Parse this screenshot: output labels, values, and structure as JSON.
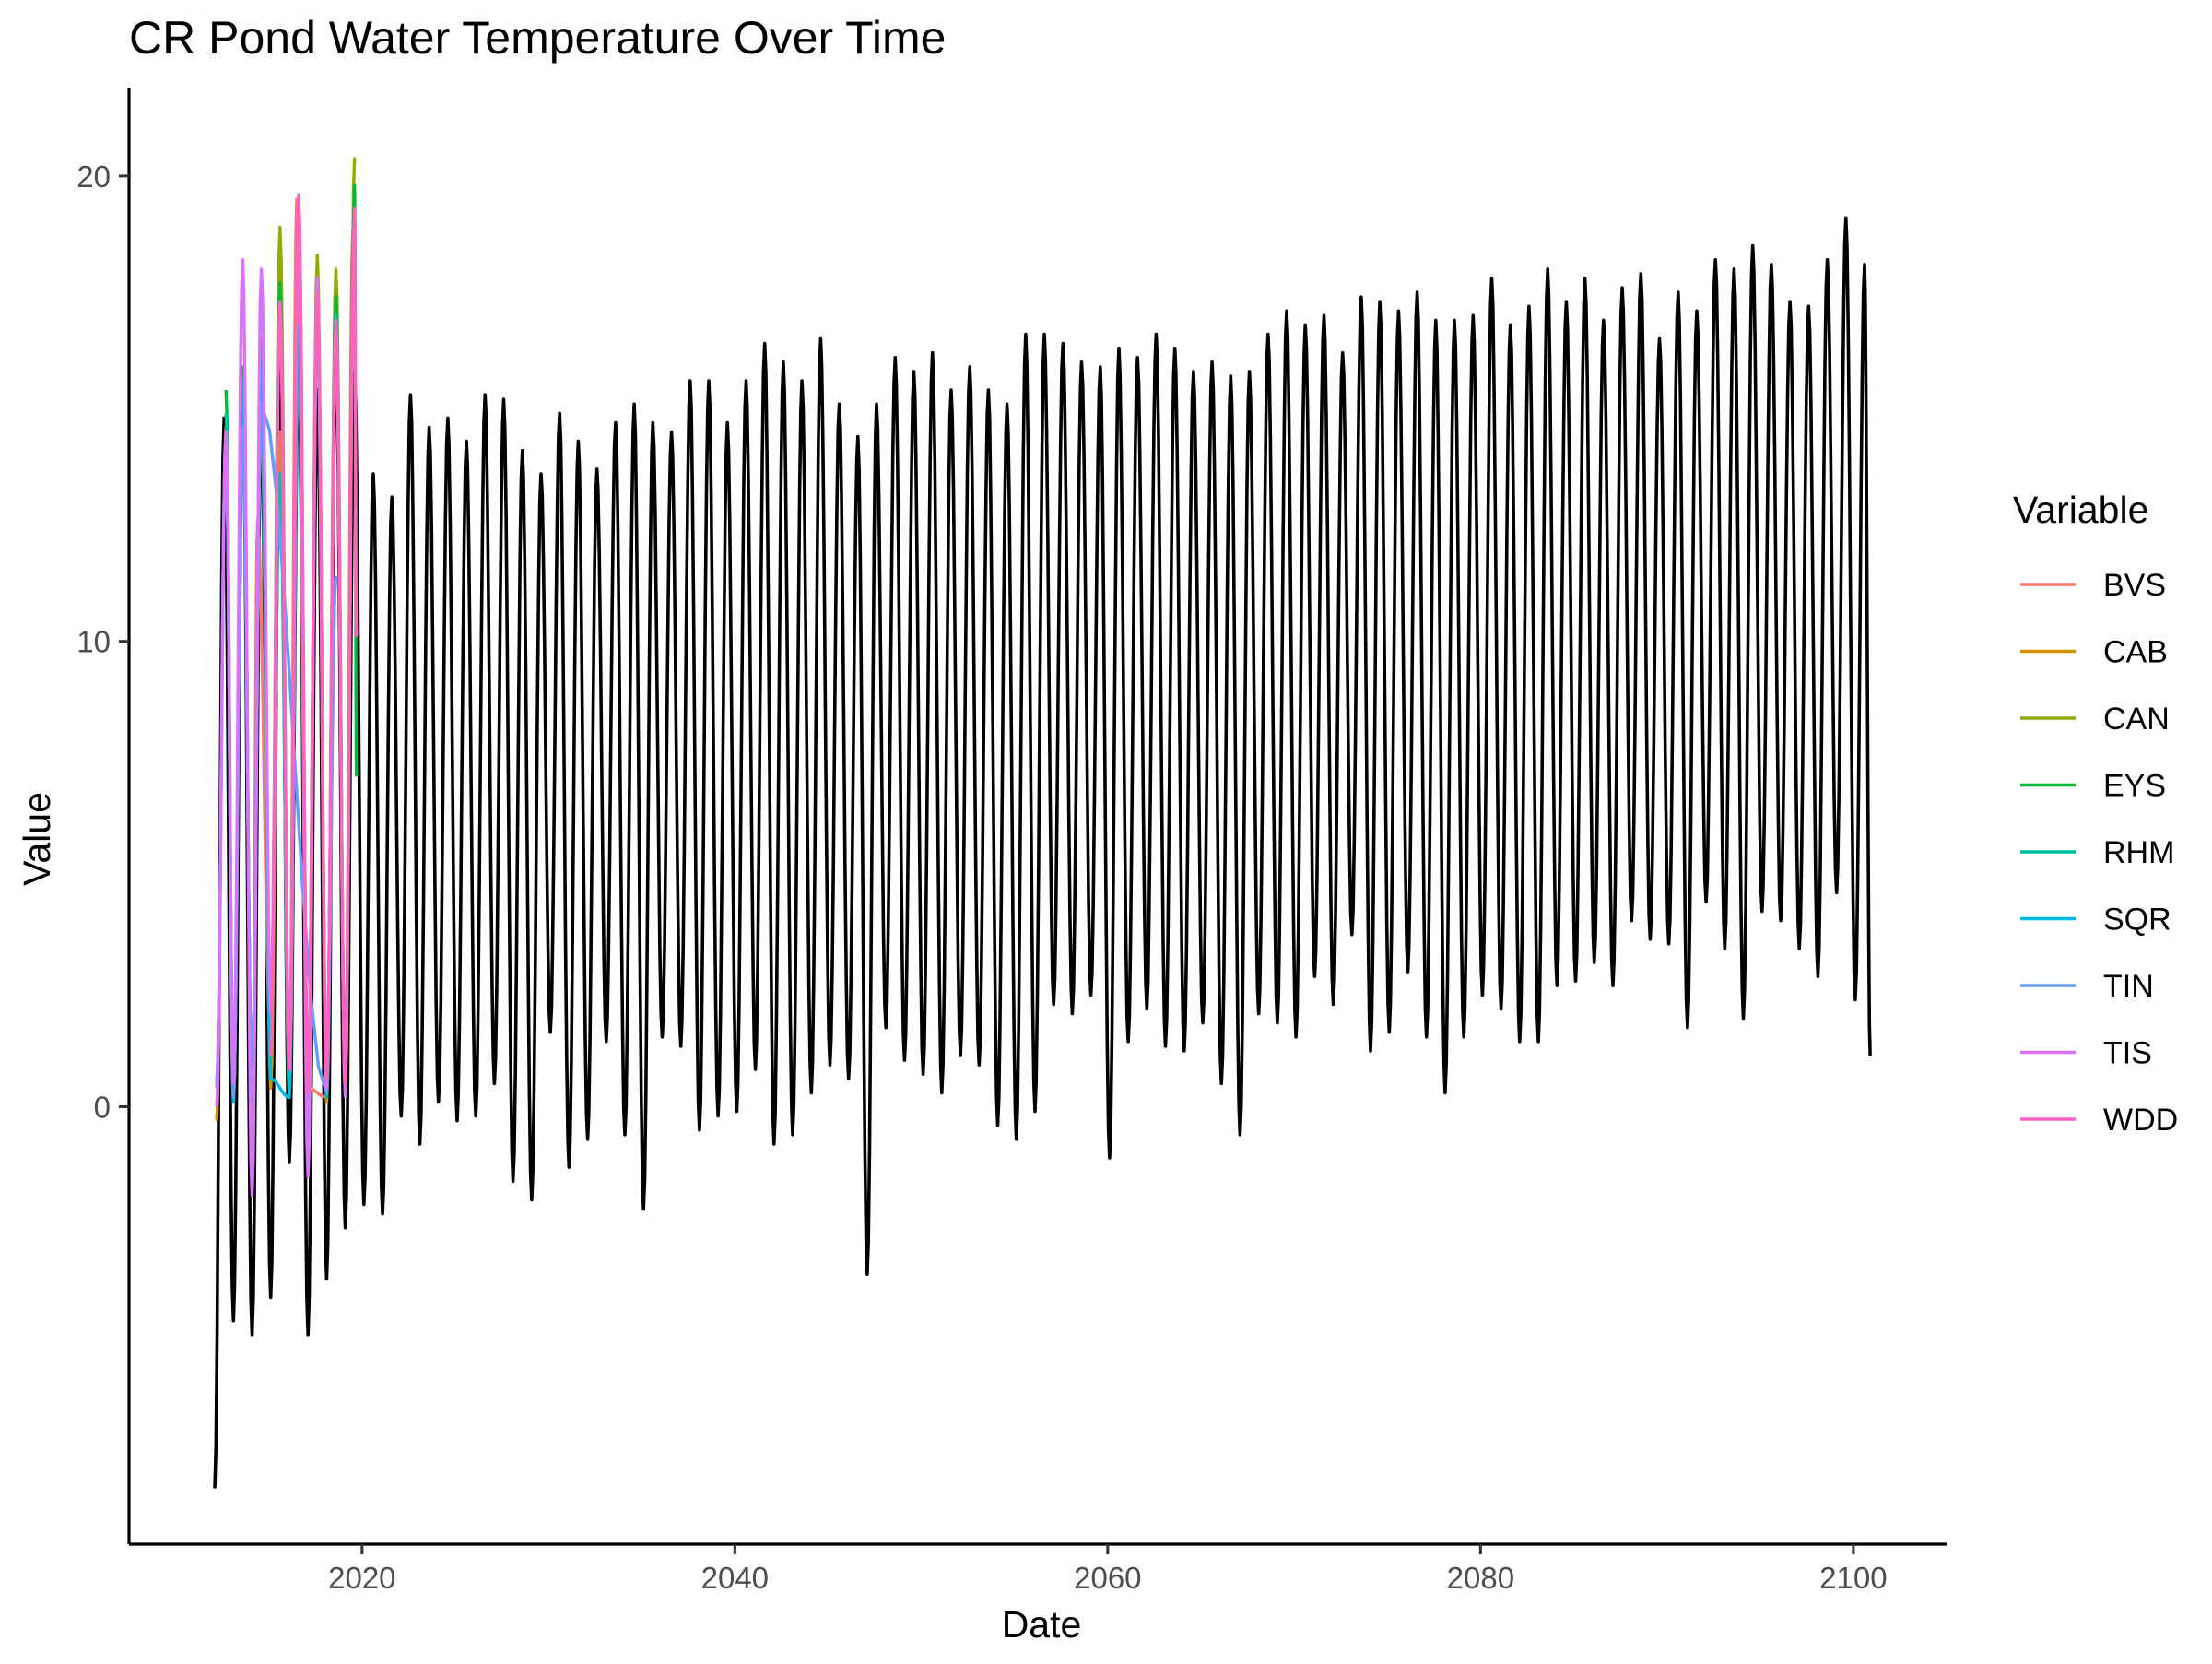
{
  "chart_data": {
    "type": "line",
    "title": "CR Pond Water Temperature Over Time",
    "xlabel": "Date",
    "ylabel": "Value",
    "xlim": [
      2007.5,
      2105.0
    ],
    "ylim": [
      -9.4,
      21.9
    ],
    "x_ticks": [
      2020,
      2040,
      2060,
      2080,
      2100
    ],
    "y_ticks": [
      0,
      10,
      20
    ],
    "grid": false,
    "legend": {
      "title": "Variable",
      "position": "right",
      "entries": [
        {
          "name": "BVS",
          "color": "#F8766D"
        },
        {
          "name": "CAB",
          "color": "#D39200"
        },
        {
          "name": "CAN",
          "color": "#93AA00"
        },
        {
          "name": "EYS",
          "color": "#00BA38"
        },
        {
          "name": "RHM",
          "color": "#00C19F"
        },
        {
          "name": "SQR",
          "color": "#00B9E3"
        },
        {
          "name": "TIN",
          "color": "#619CFF"
        },
        {
          "name": "TIS",
          "color": "#DB72FB"
        },
        {
          "name": "WDD",
          "color": "#FF61C3"
        }
      ]
    },
    "projection": {
      "name": "",
      "color": "#000000",
      "start_year": 2012.2,
      "end_year": 2100.9,
      "summer_peaks": [
        [
          2012.6,
          14.8
        ],
        [
          2013.6,
          15.2
        ],
        [
          2014.6,
          15.0
        ],
        [
          2015.6,
          16.2
        ],
        [
          2016.6,
          16.0
        ],
        [
          2017.6,
          15.4
        ],
        [
          2018.6,
          16.4
        ],
        [
          2019.6,
          15.8
        ],
        [
          2020.6,
          13.6
        ],
        [
          2021.6,
          13.1
        ],
        [
          2022.6,
          15.3
        ],
        [
          2023.6,
          14.6
        ],
        [
          2024.6,
          14.8
        ],
        [
          2025.6,
          14.3
        ],
        [
          2026.6,
          15.3
        ],
        [
          2027.6,
          15.2
        ],
        [
          2028.6,
          14.1
        ],
        [
          2029.6,
          13.6
        ],
        [
          2030.6,
          14.9
        ],
        [
          2031.6,
          14.3
        ],
        [
          2032.6,
          13.7
        ],
        [
          2033.6,
          14.7
        ],
        [
          2034.6,
          15.1
        ],
        [
          2035.6,
          14.7
        ],
        [
          2036.6,
          14.5
        ],
        [
          2037.6,
          15.6
        ],
        [
          2038.6,
          15.6
        ],
        [
          2039.6,
          14.7
        ],
        [
          2040.6,
          15.6
        ],
        [
          2041.6,
          16.4
        ],
        [
          2042.6,
          16.0
        ],
        [
          2043.6,
          15.6
        ],
        [
          2044.6,
          16.5
        ],
        [
          2045.6,
          15.1
        ],
        [
          2046.6,
          14.4
        ],
        [
          2047.6,
          15.1
        ],
        [
          2048.6,
          16.1
        ],
        [
          2049.6,
          15.8
        ],
        [
          2050.6,
          16.2
        ],
        [
          2051.6,
          15.4
        ],
        [
          2052.6,
          15.9
        ],
        [
          2053.6,
          15.4
        ],
        [
          2054.6,
          15.1
        ],
        [
          2055.6,
          16.6
        ],
        [
          2056.6,
          16.6
        ],
        [
          2057.6,
          16.4
        ],
        [
          2058.6,
          16.0
        ],
        [
          2059.6,
          15.9
        ],
        [
          2060.6,
          16.3
        ],
        [
          2061.6,
          16.1
        ],
        [
          2062.6,
          16.6
        ],
        [
          2063.6,
          16.3
        ],
        [
          2064.6,
          15.8
        ],
        [
          2065.6,
          16.0
        ],
        [
          2066.6,
          15.7
        ],
        [
          2067.6,
          15.8
        ],
        [
          2068.6,
          16.6
        ],
        [
          2069.6,
          17.1
        ],
        [
          2070.6,
          16.8
        ],
        [
          2071.6,
          17.0
        ],
        [
          2072.6,
          16.2
        ],
        [
          2073.6,
          17.4
        ],
        [
          2074.6,
          17.3
        ],
        [
          2075.6,
          17.1
        ],
        [
          2076.6,
          17.5
        ],
        [
          2077.6,
          16.9
        ],
        [
          2078.6,
          16.9
        ],
        [
          2079.6,
          17.0
        ],
        [
          2080.6,
          17.8
        ],
        [
          2081.6,
          16.8
        ],
        [
          2082.6,
          17.2
        ],
        [
          2083.6,
          18.0
        ],
        [
          2084.6,
          17.3
        ],
        [
          2085.6,
          17.8
        ],
        [
          2086.6,
          16.9
        ],
        [
          2087.6,
          17.6
        ],
        [
          2088.6,
          17.9
        ],
        [
          2089.6,
          16.5
        ],
        [
          2090.6,
          17.5
        ],
        [
          2091.6,
          17.1
        ],
        [
          2092.6,
          18.2
        ],
        [
          2093.6,
          18.0
        ],
        [
          2094.6,
          18.5
        ],
        [
          2095.6,
          18.1
        ],
        [
          2096.6,
          17.3
        ],
        [
          2097.6,
          17.2
        ],
        [
          2098.6,
          18.2
        ],
        [
          2099.6,
          19.1
        ],
        [
          2100.6,
          18.1
        ]
      ],
      "winter_troughs": [
        [
          2012.1,
          -8.2
        ],
        [
          2013.1,
          -4.6
        ],
        [
          2014.1,
          -4.9
        ],
        [
          2015.1,
          -4.1
        ],
        [
          2016.1,
          -1.2
        ],
        [
          2017.1,
          -4.9
        ],
        [
          2018.1,
          -3.7
        ],
        [
          2019.1,
          -2.6
        ],
        [
          2020.1,
          -2.1
        ],
        [
          2021.1,
          -2.3
        ],
        [
          2022.1,
          -0.2
        ],
        [
          2023.1,
          -0.8
        ],
        [
          2024.1,
          0.1
        ],
        [
          2025.1,
          -0.3
        ],
        [
          2026.1,
          -0.2
        ],
        [
          2027.1,
          0.5
        ],
        [
          2028.1,
          -1.6
        ],
        [
          2029.1,
          -2.0
        ],
        [
          2030.1,
          1.6
        ],
        [
          2031.1,
          -1.3
        ],
        [
          2032.1,
          -0.7
        ],
        [
          2033.1,
          1.4
        ],
        [
          2034.1,
          -0.6
        ],
        [
          2035.1,
          -2.2
        ],
        [
          2036.1,
          1.5
        ],
        [
          2037.1,
          1.3
        ],
        [
          2038.1,
          -0.5
        ],
        [
          2039.1,
          -0.2
        ],
        [
          2040.1,
          -0.1
        ],
        [
          2041.1,
          0.8
        ],
        [
          2042.1,
          -0.8
        ],
        [
          2043.1,
          -0.6
        ],
        [
          2044.1,
          0.3
        ],
        [
          2045.1,
          0.9
        ],
        [
          2046.1,
          0.6
        ],
        [
          2047.1,
          -3.6
        ],
        [
          2048.1,
          1.7
        ],
        [
          2049.1,
          1.0
        ],
        [
          2050.1,
          0.7
        ],
        [
          2051.1,
          0.3
        ],
        [
          2052.1,
          1.1
        ],
        [
          2053.1,
          0.9
        ],
        [
          2054.1,
          -0.4
        ],
        [
          2055.1,
          -0.7
        ],
        [
          2056.1,
          -0.1
        ],
        [
          2057.1,
          2.2
        ],
        [
          2058.1,
          2.0
        ],
        [
          2059.1,
          2.4
        ],
        [
          2060.1,
          -1.1
        ],
        [
          2061.1,
          1.4
        ],
        [
          2062.1,
          2.1
        ],
        [
          2063.1,
          1.3
        ],
        [
          2064.1,
          1.2
        ],
        [
          2065.1,
          1.8
        ],
        [
          2066.1,
          0.5
        ],
        [
          2067.1,
          -0.6
        ],
        [
          2068.1,
          2.0
        ],
        [
          2069.1,
          1.8
        ],
        [
          2070.1,
          1.5
        ],
        [
          2071.1,
          2.8
        ],
        [
          2072.1,
          2.2
        ],
        [
          2073.1,
          3.7
        ],
        [
          2074.1,
          1.2
        ],
        [
          2075.1,
          1.6
        ],
        [
          2076.1,
          2.9
        ],
        [
          2077.1,
          1.5
        ],
        [
          2078.1,
          0.3
        ],
        [
          2079.1,
          1.5
        ],
        [
          2080.1,
          2.4
        ],
        [
          2081.1,
          2.1
        ],
        [
          2082.1,
          1.4
        ],
        [
          2083.1,
          1.4
        ],
        [
          2084.1,
          2.6
        ],
        [
          2085.1,
          2.7
        ],
        [
          2086.1,
          3.1
        ],
        [
          2087.1,
          2.6
        ],
        [
          2088.1,
          4.0
        ],
        [
          2089.1,
          3.6
        ],
        [
          2090.1,
          3.5
        ],
        [
          2091.1,
          1.7
        ],
        [
          2092.1,
          4.4
        ],
        [
          2093.1,
          3.4
        ],
        [
          2094.1,
          1.9
        ],
        [
          2095.1,
          4.2
        ],
        [
          2096.1,
          4.0
        ],
        [
          2097.1,
          3.4
        ],
        [
          2098.1,
          2.8
        ],
        [
          2099.1,
          4.6
        ],
        [
          2100.1,
          2.3
        ]
      ],
      "final_value": [
        2100.9,
        1.1
      ]
    },
    "observed": [
      {
        "name": "BVS",
        "peaks": [
          [
            2014.4,
            12.6
          ],
          [
            2015.6,
            14.1
          ],
          [
            2016.5,
            19.5
          ],
          [
            2018.6,
            16.6
          ],
          [
            2019.5,
            18.8
          ]
        ],
        "troughs": [
          [
            2014.1,
            -1.2
          ],
          [
            2015.1,
            1.4
          ],
          [
            2016.1,
            0.6
          ],
          [
            2017.1,
            0.4
          ],
          [
            2018.1,
            0.2
          ],
          [
            2019.1,
            0.3
          ]
        ]
      },
      {
        "name": "CAB",
        "peaks": [
          [
            2012.7,
            14.6
          ],
          [
            2013.6,
            15.6
          ],
          [
            2014.6,
            15.5
          ],
          [
            2015.6,
            14.5
          ],
          [
            2016.6,
            16.4
          ],
          [
            2017.6,
            17.2
          ],
          [
            2018.6,
            17.0
          ]
        ],
        "troughs": [
          [
            2012.2,
            -0.3
          ],
          [
            2013.1,
            0.1
          ],
          [
            2014.1,
            0.2
          ],
          [
            2015.1,
            0.4
          ],
          [
            2016.1,
            0.2
          ],
          [
            2017.1,
            0.2
          ],
          [
            2018.1,
            0.1
          ]
        ]
      },
      {
        "name": "CAN",
        "peaks": [
          [
            2014.6,
            15.0
          ],
          [
            2015.6,
            18.9
          ],
          [
            2016.6,
            19.4
          ],
          [
            2017.6,
            18.3
          ],
          [
            2018.6,
            18.0
          ],
          [
            2019.6,
            20.4
          ]
        ],
        "troughs": [
          [
            2015.1,
            0.9
          ],
          [
            2016.1,
            0.7
          ],
          [
            2017.1,
            0.2
          ],
          [
            2018.1,
            0.3
          ],
          [
            2019.1,
            0.4
          ]
        ]
      },
      {
        "name": "EYS",
        "peaks": [
          [
            2012.7,
            15.4
          ],
          [
            2013.6,
            15.9
          ],
          [
            2014.6,
            16.5
          ],
          [
            2015.6,
            17.7
          ],
          [
            2016.6,
            19.2
          ],
          [
            2017.6,
            17.7
          ],
          [
            2018.6,
            17.4
          ],
          [
            2019.6,
            19.8
          ]
        ],
        "troughs": [
          [
            2013.1,
            0.3
          ],
          [
            2014.1,
            0.1
          ],
          [
            2015.1,
            1.5
          ],
          [
            2016.1,
            0.7
          ],
          [
            2017.1,
            0.3
          ],
          [
            2018.1,
            0.5
          ],
          [
            2019.1,
            0.4
          ]
        ],
        "final_value": [
          2019.7,
          7.1
        ]
      },
      {
        "name": "RHM",
        "peaks": [
          [
            2012.7,
            14.9
          ],
          [
            2013.6,
            15.6
          ],
          [
            2014.6,
            16.2
          ],
          [
            2015.6,
            13.6
          ],
          [
            2016.6,
            16.7
          ],
          [
            2017.6,
            17.4
          ],
          [
            2018.6,
            17.0
          ]
        ],
        "troughs": [
          [
            2013.1,
            0.1
          ],
          [
            2014.1,
            0.2
          ],
          [
            2015.1,
            2.0
          ],
          [
            2016.1,
            0.4
          ],
          [
            2017.1,
            0.2
          ],
          [
            2018.1,
            0.2
          ],
          [
            2019.1,
            0.8
          ]
        ]
      },
      {
        "name": "SQR",
        "peaks": [
          [
            2012.7,
            14.3
          ],
          [
            2013.6,
            15.0
          ],
          [
            2014.6,
            15.8
          ],
          [
            2016.6,
            16.8
          ],
          [
            2017.6,
            16.9
          ]
        ],
        "troughs": [
          [
            2012.2,
            0.5
          ],
          [
            2013.1,
            0.1
          ],
          [
            2014.1,
            0.3
          ],
          [
            2015.1,
            0.6
          ],
          [
            2016.1,
            0.2
          ],
          [
            2017.1,
            0.4
          ]
        ]
      },
      {
        "name": "TIN",
        "peaks": [
          [
            2012.7,
            14.4
          ],
          [
            2013.6,
            14.6
          ],
          [
            2014.6,
            15.1
          ],
          [
            2018.6,
            11.4
          ]
        ],
        "troughs": [
          [
            2012.2,
            0.4
          ],
          [
            2013.1,
            0.2
          ],
          [
            2014.1,
            0.2
          ],
          [
            2018.1,
            0.3
          ]
        ]
      },
      {
        "name": "TIS",
        "peaks": [
          [
            2012.7,
            14.5
          ],
          [
            2013.6,
            18.2
          ],
          [
            2014.6,
            18.0
          ],
          [
            2015.6,
            17.3
          ],
          [
            2016.6,
            19.0
          ],
          [
            2017.6,
            17.8
          ],
          [
            2018.6,
            16.9
          ]
        ],
        "troughs": [
          [
            2012.2,
            0.0
          ],
          [
            2013.1,
            0.5
          ],
          [
            2014.1,
            -1.9
          ],
          [
            2015.1,
            2.0
          ],
          [
            2016.1,
            0.9
          ],
          [
            2017.1,
            -1.5
          ],
          [
            2018.1,
            0.4
          ],
          [
            2019.1,
            0.2
          ]
        ]
      },
      {
        "name": "WDD",
        "peaks": [
          [
            2015.6,
            17.2
          ],
          [
            2016.6,
            19.6
          ],
          [
            2017.6,
            17.5
          ],
          [
            2018.6,
            16.8
          ],
          [
            2019.6,
            19.3
          ]
        ],
        "troughs": [
          [
            2015.1,
            1.1
          ],
          [
            2016.1,
            0.8
          ],
          [
            2017.1,
            0.3
          ],
          [
            2018.1,
            0.6
          ],
          [
            2019.1,
            0.5
          ]
        ],
        "final_value": [
          2019.7,
          10.1
        ]
      }
    ]
  }
}
